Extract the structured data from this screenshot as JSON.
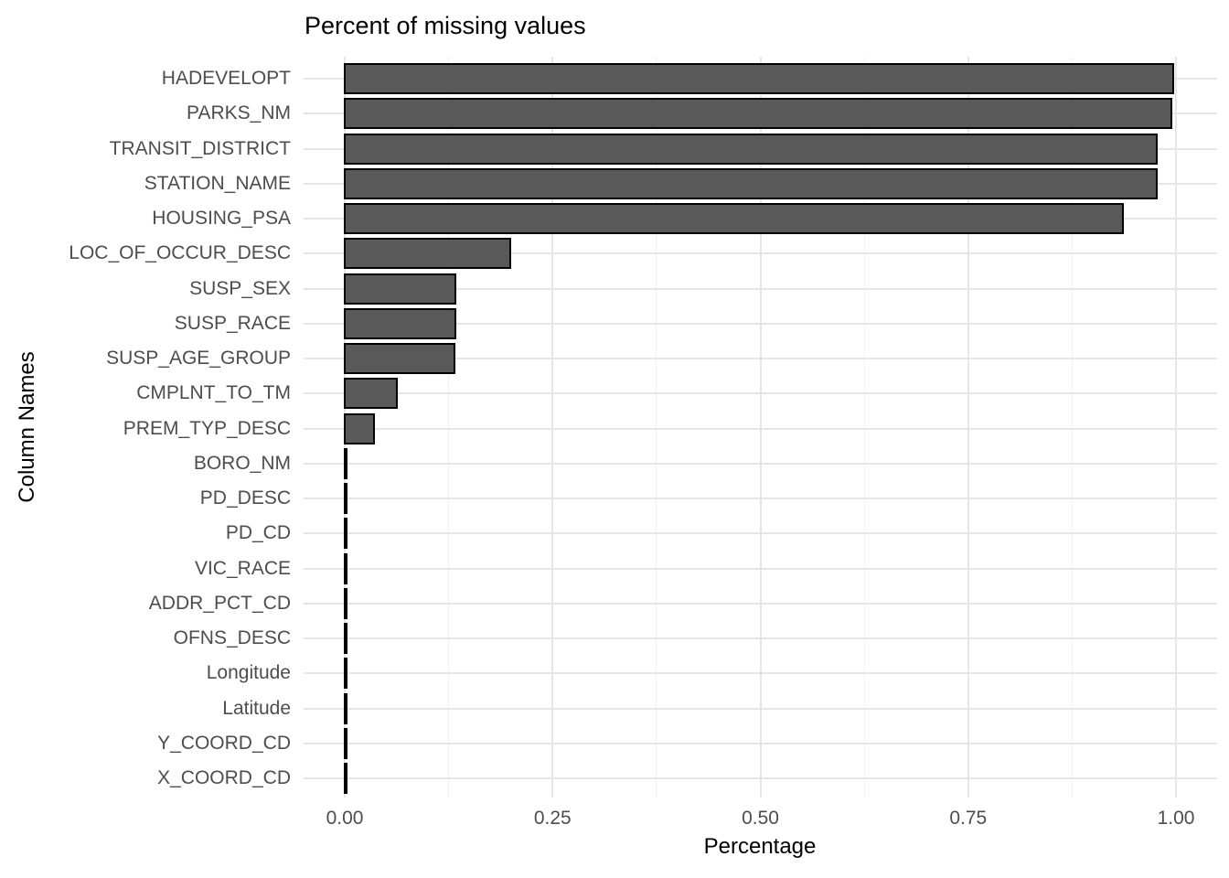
{
  "chart_data": {
    "type": "bar",
    "orientation": "horizontal",
    "title": "Percent of missing values",
    "xlabel": "Percentage",
    "ylabel": "Column Names",
    "xlim": [
      0,
      1
    ],
    "x_ticks": [
      "0.00",
      "0.25",
      "0.50",
      "0.75",
      "1.00"
    ],
    "x_tick_values": [
      0,
      0.25,
      0.5,
      0.75,
      1.0
    ],
    "x_minor_gridlines": [
      0.125,
      0.375,
      0.625,
      0.875
    ],
    "grid": "on",
    "legend": "none",
    "categories": [
      "HADEVELOPT",
      "PARKS_NM",
      "TRANSIT_DISTRICT",
      "STATION_NAME",
      "HOUSING_PSA",
      "LOC_OF_OCCUR_DESC",
      "SUSP_SEX",
      "SUSP_RACE",
      "SUSP_AGE_GROUP",
      "CMPLNT_TO_TM",
      "PREM_TYP_DESC",
      "BORO_NM",
      "PD_DESC",
      "PD_CD",
      "VIC_RACE",
      "ADDR_PCT_CD",
      "OFNS_DESC",
      "Longitude",
      "Latitude",
      "Y_COORD_CD",
      "X_COORD_CD"
    ],
    "values": [
      0.997,
      0.995,
      0.977,
      0.977,
      0.936,
      0.199,
      0.133,
      0.133,
      0.132,
      0.063,
      0.035,
      0.0015,
      0.0015,
      0.0012,
      0.0005,
      0.0005,
      0.0004,
      0.0003,
      0.0003,
      0.0002,
      0.0002
    ],
    "colors": {
      "bar_fill": "#595959",
      "bar_stroke": "#000000",
      "grid_major": "#e6e6e6",
      "grid_minor": "#f2f2f2",
      "axis_text": "#4d4d4d",
      "title_text": "#000000",
      "background": "#ffffff"
    }
  }
}
